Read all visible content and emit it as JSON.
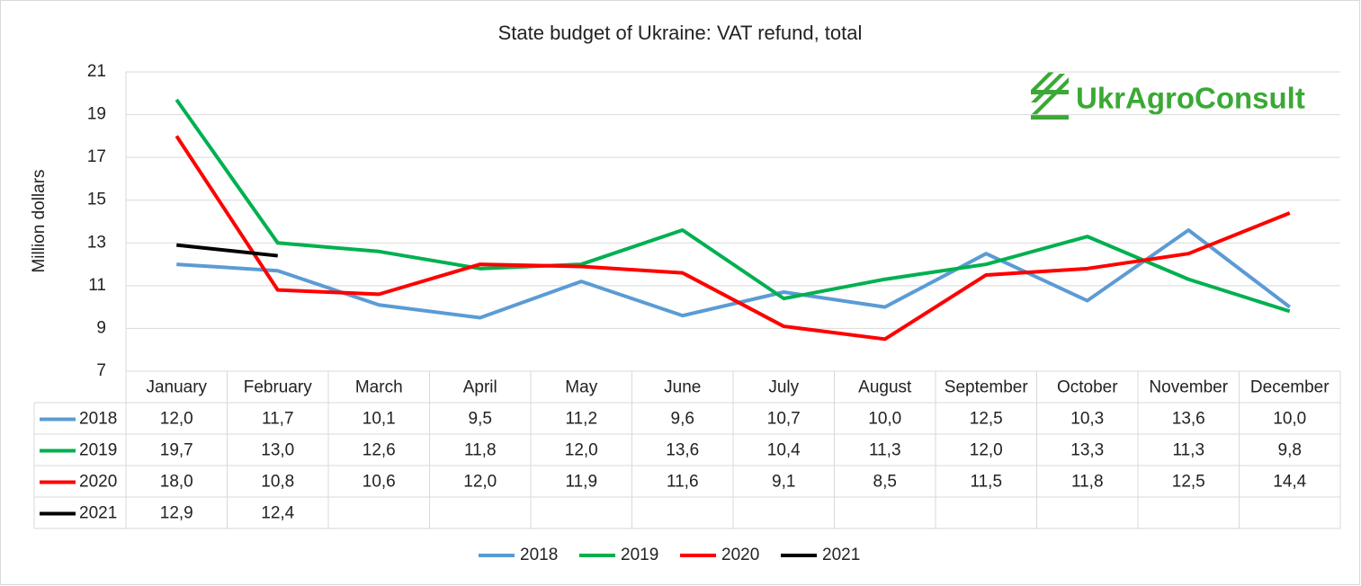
{
  "chart_data": {
    "type": "line",
    "title": "State budget of Ukraine: VAT refund, total",
    "ylabel": "Million dollars",
    "logo": "UkrAgroConsult",
    "categories": [
      "January",
      "February",
      "March",
      "April",
      "May",
      "June",
      "July",
      "August",
      "September",
      "October",
      "November",
      "December"
    ],
    "series": [
      {
        "name": "2018",
        "color": "#5b9bd5",
        "values": [
          12.0,
          11.7,
          10.1,
          9.5,
          11.2,
          9.6,
          10.7,
          10.0,
          12.5,
          10.3,
          13.6,
          10.0
        ],
        "value_labels": [
          "12,0",
          "11,7",
          "10,1",
          "9,5",
          "11,2",
          "9,6",
          "10,7",
          "10,0",
          "12,5",
          "10,3",
          "13,6",
          "10,0"
        ]
      },
      {
        "name": "2019",
        "color": "#00b050",
        "values": [
          19.7,
          13.0,
          12.6,
          11.8,
          12.0,
          13.6,
          10.4,
          11.3,
          12.0,
          13.3,
          11.3,
          9.8
        ],
        "value_labels": [
          "19,7",
          "13,0",
          "12,6",
          "11,8",
          "12,0",
          "13,6",
          "10,4",
          "11,3",
          "12,0",
          "13,3",
          "11,3",
          "9,8"
        ]
      },
      {
        "name": "2020",
        "color": "#ff0000",
        "values": [
          18.0,
          10.8,
          10.6,
          12.0,
          11.9,
          11.6,
          9.1,
          8.5,
          11.5,
          11.8,
          12.5,
          14.4
        ],
        "value_labels": [
          "18,0",
          "10,8",
          "10,6",
          "12,0",
          "11,9",
          "11,6",
          "9,1",
          "8,5",
          "11,5",
          "11,8",
          "12,5",
          "14,4"
        ]
      },
      {
        "name": "2021",
        "color": "#000000",
        "values": [
          12.9,
          12.4,
          null,
          null,
          null,
          null,
          null,
          null,
          null,
          null,
          null,
          null
        ],
        "value_labels": [
          "12,9",
          "12,4",
          null,
          null,
          null,
          null,
          null,
          null,
          null,
          null,
          null,
          null
        ]
      }
    ],
    "ylim": [
      7,
      21
    ],
    "yticks": [
      7,
      9,
      11,
      13,
      15,
      17,
      19,
      21
    ],
    "grid": true,
    "legend": "bottom"
  }
}
